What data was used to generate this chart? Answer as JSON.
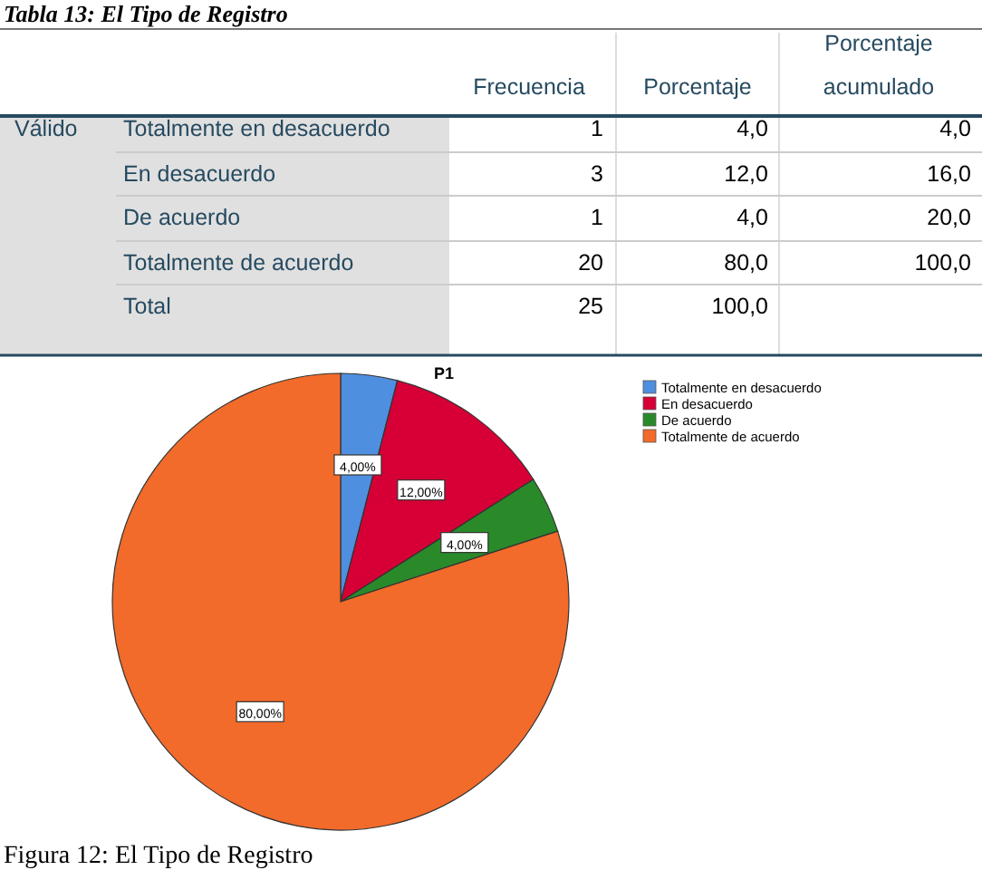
{
  "chart_data": [
    {
      "type": "other",
      "title": "Tabla 13: El Tipo de Registro",
      "ylabel": "Válido",
      "categories": [
        "Totalmente en desacuerdo",
        "En desacuerdo",
        "De acuerdo",
        "Totalmente de acuerdo",
        "Total"
      ],
      "series": [
        {
          "name": "Frecuencia",
          "values": [
            1,
            3,
            1,
            20,
            25
          ],
          "value_labels": [
            "1",
            "3",
            "1",
            "20",
            "25"
          ]
        },
        {
          "name": "Porcentaje",
          "values": [
            4,
            12,
            4,
            80,
            100
          ],
          "value_labels": [
            "4,0",
            "12,0",
            "4,0",
            "80,0",
            "100,0"
          ]
        },
        {
          "name": "Porcentaje acumulado",
          "values": [
            4,
            16,
            20,
            100,
            null
          ],
          "value_labels": [
            "4,0",
            "16,0",
            "20,0",
            "100,0",
            null
          ]
        }
      ]
    },
    {
      "type": "pie",
      "title": "P1",
      "categories": [
        "Totalmente en desacuerdo",
        "En desacuerdo",
        "De acuerdo",
        "Totalmente de acuerdo"
      ],
      "values": [
        4,
        12,
        4,
        80
      ],
      "colors": [
        "#4f8fe0",
        "#d60036",
        "#2a8a2a",
        "#f26b2a"
      ],
      "value_labels": [
        "4,00%",
        "12,00%",
        "4,00%",
        "80,00%"
      ],
      "legend": "top right",
      "annotations": [
        "Figura 12: El Tipo de Registro"
      ]
    }
  ]
}
